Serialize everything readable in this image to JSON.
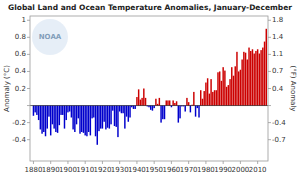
{
  "chart_data": {
    "type": "bar",
    "title": "Global Land and Ocean Temperature Anomalies, January-December",
    "y_label": "Anomaly (°C)",
    "y2_label": "(°F) Anomaly",
    "annotations": [
      "NOAA"
    ],
    "x": [
      1880,
      1881,
      1882,
      1883,
      1884,
      1885,
      1886,
      1887,
      1888,
      1889,
      1890,
      1891,
      1892,
      1893,
      1894,
      1895,
      1896,
      1897,
      1898,
      1899,
      1900,
      1901,
      1902,
      1903,
      1904,
      1905,
      1906,
      1907,
      1908,
      1909,
      1910,
      1911,
      1912,
      1913,
      1914,
      1915,
      1916,
      1917,
      1918,
      1919,
      1920,
      1921,
      1922,
      1923,
      1924,
      1925,
      1926,
      1927,
      1928,
      1929,
      1930,
      1931,
      1932,
      1933,
      1934,
      1935,
      1936,
      1937,
      1938,
      1939,
      1940,
      1941,
      1942,
      1943,
      1944,
      1945,
      1946,
      1947,
      1948,
      1949,
      1950,
      1951,
      1952,
      1953,
      1954,
      1955,
      1956,
      1957,
      1958,
      1959,
      1960,
      1961,
      1962,
      1963,
      1964,
      1965,
      1966,
      1967,
      1968,
      1969,
      1970,
      1971,
      1972,
      1973,
      1974,
      1975,
      1976,
      1977,
      1978,
      1979,
      1980,
      1981,
      1982,
      1983,
      1984,
      1985,
      1986,
      1987,
      1988,
      1989,
      1990,
      1991,
      1992,
      1993,
      1994,
      1995,
      1996,
      1997,
      1998,
      1999,
      2000,
      2001,
      2002,
      2003,
      2004,
      2005,
      2006,
      2007,
      2008,
      2009,
      2010,
      2011,
      2012,
      2013,
      2014,
      2015
    ],
    "values": [
      -0.12,
      -0.08,
      -0.11,
      -0.17,
      -0.28,
      -0.33,
      -0.31,
      -0.36,
      -0.27,
      -0.13,
      -0.35,
      -0.22,
      -0.27,
      -0.31,
      -0.32,
      -0.23,
      -0.11,
      -0.11,
      -0.27,
      -0.17,
      -0.08,
      -0.07,
      -0.14,
      -0.28,
      -0.31,
      -0.22,
      -0.15,
      -0.33,
      -0.31,
      -0.32,
      -0.35,
      -0.36,
      -0.31,
      -0.35,
      -0.15,
      -0.14,
      -0.36,
      -0.46,
      -0.3,
      -0.27,
      -0.27,
      -0.19,
      -0.28,
      -0.26,
      -0.27,
      -0.22,
      -0.06,
      -0.24,
      -0.25,
      -0.37,
      -0.07,
      -0.09,
      -0.09,
      -0.27,
      -0.13,
      -0.19,
      -0.14,
      -0.02,
      -0.04,
      -0.04,
      0.1,
      0.19,
      0.07,
      0.09,
      0.2,
      0.09,
      -0.01,
      -0.02,
      -0.05,
      -0.06,
      -0.03,
      0.08,
      0.02,
      0.09,
      -0.2,
      -0.16,
      -0.16,
      0.06,
      0.06,
      0.06,
      -0.02,
      0.06,
      0.03,
      0.05,
      -0.2,
      -0.15,
      -0.01,
      -0.01,
      -0.07,
      0.09,
      0.04,
      -0.08,
      0.01,
      0.16,
      -0.13,
      -0.03,
      -0.14,
      0.18,
      0.08,
      0.17,
      0.27,
      0.32,
      0.14,
      0.31,
      0.16,
      0.18,
      0.18,
      0.39,
      0.4,
      0.29,
      0.45,
      0.41,
      0.22,
      0.24,
      0.31,
      0.45,
      0.35,
      0.46,
      0.63,
      0.4,
      0.42,
      0.54,
      0.63,
      0.62,
      0.54,
      0.68,
      0.64,
      0.66,
      0.61,
      0.64,
      0.66,
      0.61,
      0.65,
      0.68,
      0.75,
      0.9
    ],
    "colors": [
      "#0000cc",
      "#0000cc",
      "#0000cc",
      "#0000cc",
      "#0000cc",
      "#0000cc",
      "#0000cc",
      "#0000cc",
      "#0000cc",
      "#0000cc",
      "#0000cc",
      "#0000cc",
      "#0000cc",
      "#0000cc",
      "#0000cc",
      "#0000cc",
      "#0000cc",
      "#0000cc",
      "#0000cc",
      "#0000cc",
      "#0000cc",
      "#0000cc",
      "#0000cc",
      "#0000cc",
      "#0000cc",
      "#0000cc",
      "#0000cc",
      "#0000cc",
      "#0000cc",
      "#0000cc",
      "#0000cc",
      "#0000cc",
      "#0000cc",
      "#0000cc",
      "#0000cc",
      "#0000cc",
      "#0000cc",
      "#0000cc",
      "#0000cc",
      "#0000cc",
      "#0000cc",
      "#0000cc",
      "#0000cc",
      "#0000cc",
      "#0000cc",
      "#0000cc",
      "#0000cc",
      "#0000cc",
      "#0000cc",
      "#0000cc",
      "#0000cc",
      "#0000cc",
      "#0000cc",
      "#0000cc",
      "#0000cc",
      "#0000cc",
      "#0000cc",
      "#0000cc",
      "#0000cc",
      "#0000cc",
      "#cc0000",
      "#cc0000",
      "#cc0000",
      "#cc0000",
      "#cc0000",
      "#cc0000",
      "#0000cc",
      "#0000cc",
      "#0000cc",
      "#0000cc",
      "#0000cc",
      "#cc0000",
      "#cc0000",
      "#cc0000",
      "#0000cc",
      "#0000cc",
      "#0000cc",
      "#cc0000",
      "#cc0000",
      "#cc0000",
      "#0000cc",
      "#cc0000",
      "#cc0000",
      "#cc0000",
      "#0000cc",
      "#0000cc",
      "#0000cc",
      "#0000cc",
      "#0000cc",
      "#cc0000",
      "#cc0000",
      "#0000cc",
      "#cc0000",
      "#cc0000",
      "#0000cc",
      "#0000cc",
      "#0000cc",
      "#cc0000",
      "#cc0000",
      "#cc0000",
      "#cc0000",
      "#cc0000",
      "#cc0000",
      "#cc0000",
      "#cc0000",
      "#cc0000",
      "#cc0000",
      "#cc0000",
      "#cc0000",
      "#cc0000",
      "#cc0000",
      "#cc0000",
      "#cc0000",
      "#cc0000",
      "#cc0000",
      "#cc0000",
      "#cc0000",
      "#cc0000",
      "#cc0000",
      "#cc0000",
      "#cc0000",
      "#cc0000",
      "#cc0000",
      "#cc0000",
      "#cc0000",
      "#cc0000",
      "#cc0000",
      "#cc0000",
      "#cc0000",
      "#cc0000",
      "#cc0000",
      "#cc0000",
      "#cc0000",
      "#cc0000",
      "#cc0000",
      "#cc0000"
    ],
    "xlim": [
      1878,
      2016
    ],
    "xticks": [
      1880,
      1890,
      1900,
      1910,
      1920,
      1930,
      1940,
      1950,
      1960,
      1970,
      1980,
      1990,
      2000,
      2010
    ],
    "ylim": [
      -0.65,
      1.05
    ],
    "yticks": [
      -0.4,
      -0.2,
      {
        "value": 0.0,
        "label": null
      },
      0.2,
      0.4,
      0.6,
      0.8,
      1.0
    ],
    "y2lim": [
      -1.17,
      1.89
    ],
    "y2ticks": [
      {
        "value": -0.72,
        "label": "-0.7"
      },
      {
        "value": -0.36,
        "label": "-0.4"
      },
      {
        "value": 0.0,
        "label": null
      },
      {
        "value": 0.36,
        "label": "0.4"
      },
      {
        "value": 0.72,
        "label": "0.7"
      },
      {
        "value": 1.08,
        "label": "1.1"
      },
      {
        "value": 1.44,
        "label": "1.4"
      },
      1.8
    ],
    "grid": false
  }
}
